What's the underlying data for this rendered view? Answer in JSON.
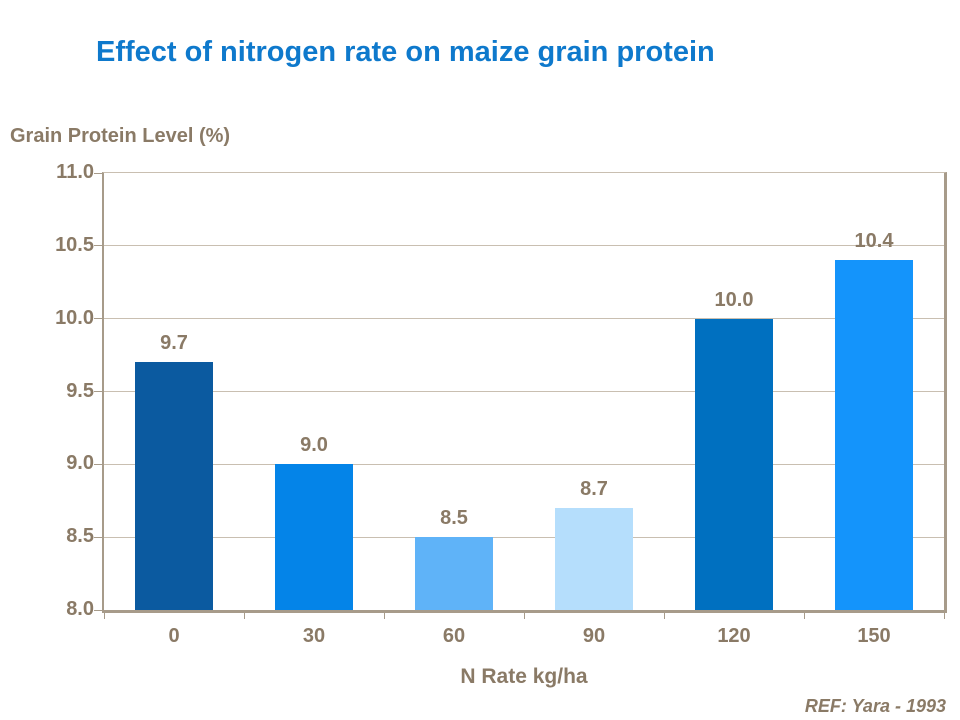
{
  "title": "Effect of nitrogen rate on maize grain protein",
  "ref_note": "REF: Yara - 1993",
  "colors": {
    "title_blue": "#0e79cc",
    "text_taupe": "#8a7a66",
    "axis_line": "#a79b8a",
    "gridline": "#c9bfb1",
    "background": "#ffffff"
  },
  "chart_data": {
    "type": "bar",
    "title": "Effect of nitrogen rate on maize grain protein",
    "ylabel": "Grain Protein Level (%)",
    "xlabel": "N Rate kg/ha",
    "categories": [
      "0",
      "30",
      "60",
      "90",
      "120",
      "150"
    ],
    "values": [
      9.7,
      9.0,
      8.5,
      8.7,
      10.0,
      10.4
    ],
    "value_labels": [
      "9.7",
      "9.0",
      "8.5",
      "8.7",
      "10.0",
      "10.4"
    ],
    "bar_colors": [
      "#0b5aa0",
      "#0484e8",
      "#5fb3f8",
      "#b5defc",
      "#0070c0",
      "#1494fb"
    ],
    "ylim": [
      8.0,
      11.0
    ],
    "ytick_step": 0.5,
    "ytick_labels": [
      "8.0",
      "8.5",
      "9.0",
      "9.5",
      "10.0",
      "10.5",
      "11.0"
    ],
    "grid": true,
    "legend": "none",
    "annotation": "REF: Yara - 1993"
  }
}
